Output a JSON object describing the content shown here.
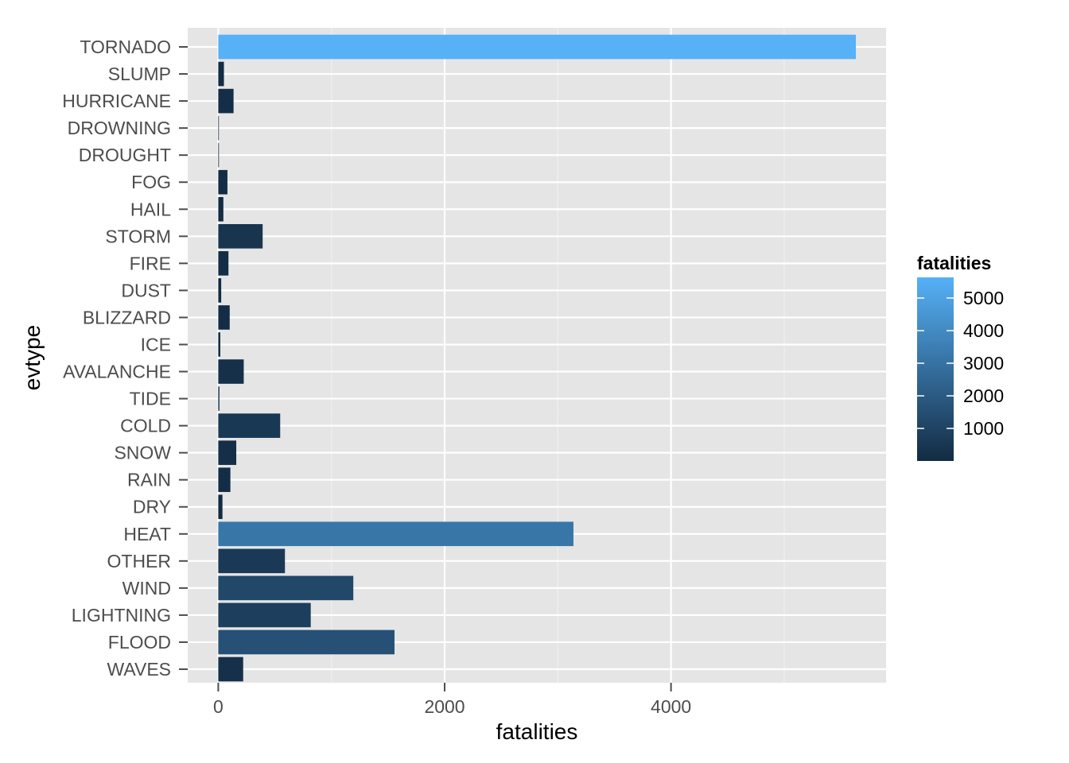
{
  "chart_data": {
    "type": "bar",
    "orientation": "horizontal",
    "xlabel": "fatalities",
    "ylabel": "evtype",
    "xlim": [
      -270,
      5900
    ],
    "xticks": [
      0,
      2000,
      4000
    ],
    "xtick_labels": [
      "0",
      "2000",
      "4000"
    ],
    "grid": true,
    "categories": [
      "TORNADO",
      "SLUMP",
      "HURRICANE",
      "DROWNING",
      "DROUGHT",
      "FOG",
      "HAIL",
      "STORM",
      "FIRE",
      "DUST",
      "BLIZZARD",
      "ICE",
      "AVALANCHE",
      "TIDE",
      "COLD",
      "SNOW",
      "RAIN",
      "DRY",
      "HEAT",
      "OTHER",
      "WIND",
      "LIGHTNING",
      "FLOOD",
      "WAVES"
    ],
    "values": [
      5633,
      50,
      135,
      2,
      6,
      81,
      45,
      392,
      90,
      26,
      101,
      18,
      225,
      10,
      547,
      159,
      107,
      37,
      3138,
      589,
      1193,
      817,
      1557,
      220
    ],
    "legend": {
      "title": "fatalities",
      "placement": "right",
      "ticks": [
        1000,
        2000,
        3000,
        4000,
        5000
      ],
      "tick_labels": [
        "1000",
        "2000",
        "3000",
        "4000",
        "5000"
      ],
      "color_low": "#132B43",
      "color_high": "#56B1F7"
    },
    "colors": {
      "panel_bg": "#E5E5E5",
      "grid_major": "#FFFFFF",
      "grid_minor": "#F2F2F2"
    }
  }
}
